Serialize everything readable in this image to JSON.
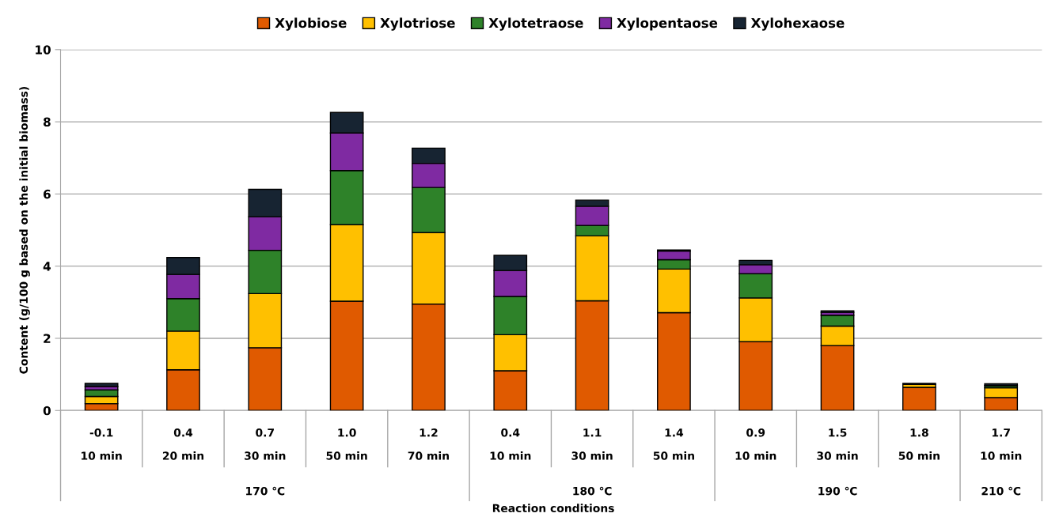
{
  "chart_data": {
    "type": "bar",
    "stacked": true,
    "categories": [
      "-0.1\n10 min",
      "0.4\n20 min",
      "0.7\n30 min",
      "1.0\n50 min",
      "1.2\n70 min",
      "0.4\n10 min",
      "1.1\n30 min",
      "1.4\n50 min",
      "0.9\n10 min",
      "1.5\n30 min",
      "1.8\n50 min",
      "1.7\n10 min"
    ],
    "series": [
      {
        "name": "Xylobiose",
        "color": "#e05a00",
        "values": [
          0.19,
          1.13,
          1.74,
          3.03,
          2.95,
          1.1,
          3.04,
          2.71,
          1.91,
          1.8,
          0.64,
          0.36
        ]
      },
      {
        "name": "Xylotriose",
        "color": "#ffc000",
        "values": [
          0.2,
          1.07,
          1.5,
          2.12,
          1.98,
          1.0,
          1.8,
          1.21,
          1.21,
          0.54,
          0.08,
          0.27
        ]
      },
      {
        "name": "Xylotetraose",
        "color": "#2e8229",
        "values": [
          0.18,
          0.9,
          1.2,
          1.5,
          1.25,
          1.06,
          0.29,
          0.26,
          0.67,
          0.3,
          null,
          0.06
        ]
      },
      {
        "name": "Xylopentaose",
        "color": "#7f2aa2",
        "values": [
          0.1,
          0.67,
          0.93,
          1.04,
          0.67,
          0.72,
          0.53,
          0.24,
          0.25,
          0.08,
          null,
          null
        ]
      },
      {
        "name": "Xylohexaose",
        "color": "#172432",
        "values": [
          0.08,
          0.47,
          0.76,
          0.57,
          0.42,
          0.42,
          0.17,
          0.03,
          0.12,
          0.04,
          0.03,
          0.05
        ]
      }
    ],
    "annotations": [
      "170 ℃",
      "180 ℃",
      "190 ℃",
      "210 ℃",
      "Reaction conditions"
    ],
    "ylabel": "Content (g/100 g based on the initial biomass)",
    "ylim": [
      0,
      10
    ],
    "yticks": [
      0,
      2,
      4,
      6,
      8,
      10
    ],
    "grid": "y",
    "legend": "top"
  }
}
